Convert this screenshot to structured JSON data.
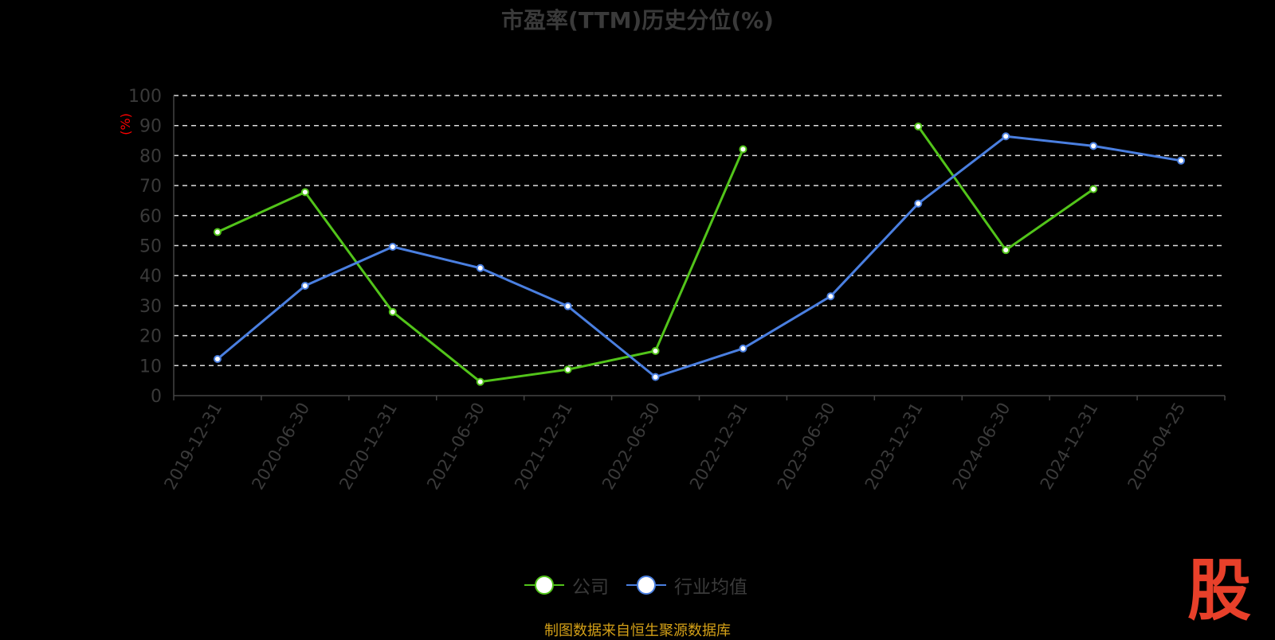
{
  "chart_data": {
    "type": "line",
    "title": "市盈率(TTM)历史分位(%)",
    "ylabel": "(%)",
    "ylim": [
      0,
      100
    ],
    "yticks": [
      0,
      10,
      20,
      30,
      40,
      50,
      60,
      70,
      80,
      90,
      100
    ],
    "grid": true,
    "legend_position": "bottom",
    "categories": [
      "2019-12-31",
      "2020-06-30",
      "2020-12-31",
      "2021-06-30",
      "2021-12-31",
      "2022-06-30",
      "2022-12-31",
      "2023-06-30",
      "2023-12-31",
      "2024-06-30",
      "2024-12-31",
      "2025-04-25"
    ],
    "series": [
      {
        "name": "公司",
        "color": "#52c41a",
        "values": [
          54.5,
          67.8,
          27.9,
          4.6,
          8.7,
          14.9,
          82.1,
          null,
          89.7,
          48.5,
          68.8,
          null
        ]
      },
      {
        "name": "行业均值",
        "color": "#4a7fe0",
        "values": [
          12.2,
          36.6,
          49.6,
          42.5,
          29.8,
          6.2,
          15.7,
          33.1,
          64.0,
          86.4,
          83.2,
          78.3
        ]
      }
    ]
  },
  "footer": "制图数据来自恒生聚源数据库",
  "logo": "股",
  "colors": {
    "background": "#000000",
    "ylabel": "#ff0000",
    "footer": "#d4a017",
    "logo": "#e8402a"
  }
}
